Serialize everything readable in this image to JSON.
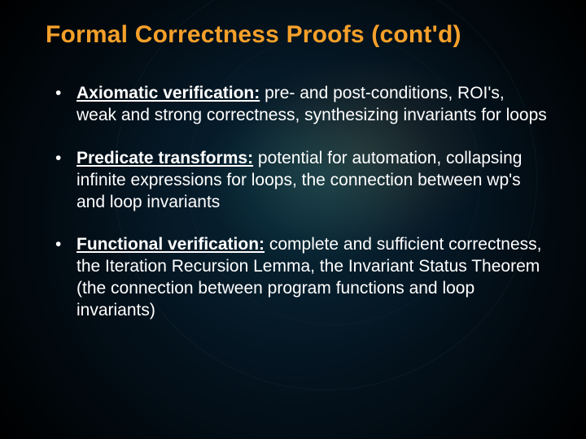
{
  "slide": {
    "title": "Formal Correctness Proofs (cont'd)",
    "title_color": "#f5a02a",
    "title_fontsize": 30,
    "body_fontsize": 21,
    "text_color": "#ffffff",
    "background": {
      "base": "#000000",
      "radial_inner": "#07212e",
      "glow_teal": "rgba(30,90,100,0.55)",
      "glow_amber": "rgba(120,80,40,0.35)"
    },
    "bullets": [
      {
        "term": "Axiomatic verification:",
        "rest": "  pre- and post-conditions, ROI's, weak and strong correctness, synthesizing invariants for loops"
      },
      {
        "term": "Predicate transforms:",
        "rest": "  potential for automation, collapsing infinite expressions for loops, the connection between wp's and loop invariants"
      },
      {
        "term": "Functional verification:",
        "rest": " complete and sufficient correctness, the Iteration Recursion Lemma, the Invariant Status Theorem (the connection between program functions and loop invariants)"
      }
    ]
  }
}
